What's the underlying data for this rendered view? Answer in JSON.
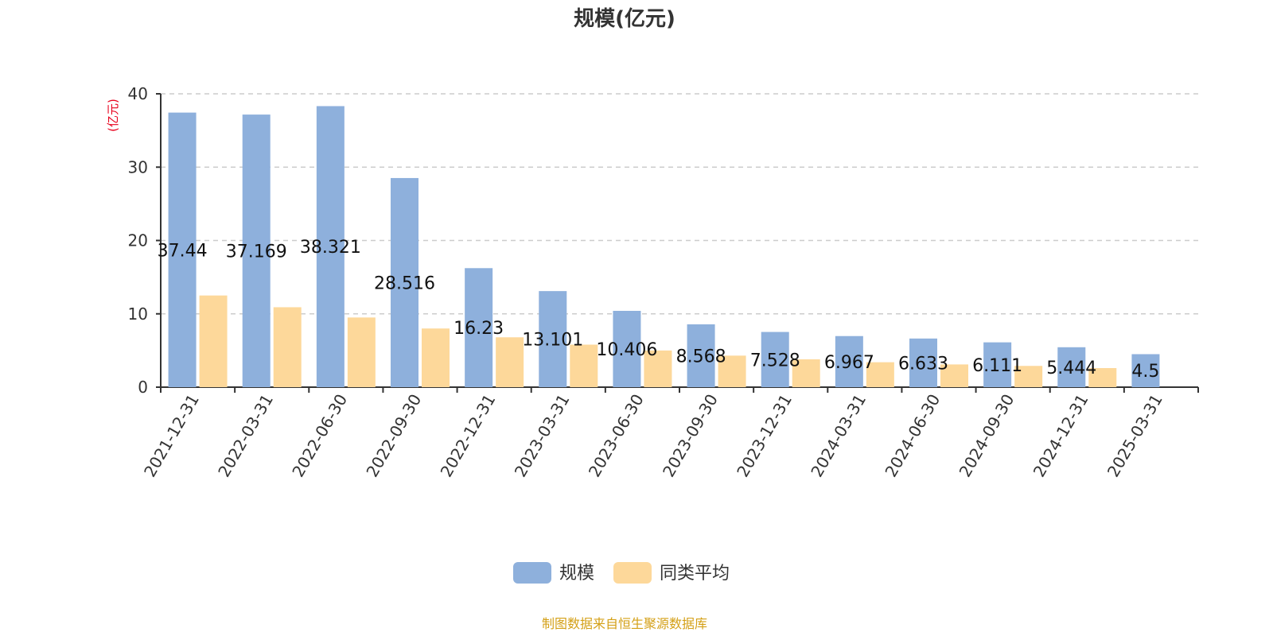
{
  "chart_data": {
    "type": "bar",
    "title": "规模(亿元)",
    "ylabel": "(亿元)",
    "xlabel": "",
    "ylim": [
      0,
      40
    ],
    "yticks": [
      0,
      10,
      20,
      30,
      40
    ],
    "grid": true,
    "legend_position": "bottom-center",
    "categories": [
      "2021-12-31",
      "2022-03-31",
      "2022-06-30",
      "2022-09-30",
      "2022-12-31",
      "2023-03-31",
      "2023-06-30",
      "2023-09-30",
      "2023-12-31",
      "2024-03-31",
      "2024-06-30",
      "2024-09-30",
      "2024-12-31",
      "2025-03-31"
    ],
    "series": [
      {
        "name": "规模",
        "color": "#8eb0dc",
        "values": [
          37.44,
          37.169,
          38.321,
          28.516,
          16.23,
          13.101,
          10.406,
          8.568,
          7.528,
          6.967,
          6.633,
          6.111,
          5.444,
          4.5
        ],
        "labels": [
          "37.44",
          "37.169",
          "38.321",
          "28.516",
          "16.23",
          "13.101",
          "10.406",
          "8.568",
          "7.528",
          "6.967",
          "6.633",
          "6.111",
          "5.444",
          "4.5"
        ]
      },
      {
        "name": "同类平均",
        "color": "#fdd89a",
        "values": [
          12.5,
          10.9,
          9.5,
          8.0,
          6.8,
          5.8,
          5.0,
          4.3,
          3.8,
          3.4,
          3.1,
          2.9,
          2.6,
          null
        ]
      }
    ]
  },
  "colors": {
    "axis": "#333333",
    "grid": "#cccccc",
    "unit_label": "#e8001c",
    "source_text": "#d4a017"
  },
  "footer": {
    "source": "制图数据来自恒生聚源数据库"
  }
}
